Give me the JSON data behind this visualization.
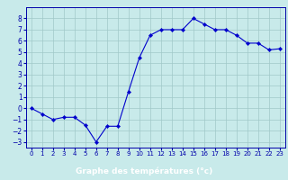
{
  "x": [
    0,
    1,
    2,
    3,
    4,
    5,
    6,
    7,
    8,
    9,
    10,
    11,
    12,
    13,
    14,
    15,
    16,
    17,
    18,
    19,
    20,
    21,
    22,
    23
  ],
  "y": [
    0,
    -0.5,
    -1,
    -0.8,
    -0.8,
    -1.5,
    -3,
    -1.6,
    -1.6,
    1.5,
    4.5,
    6.5,
    7,
    7,
    7,
    8,
    7.5,
    7,
    7,
    6.5,
    5.8,
    5.8,
    5.2,
    5.3
  ],
  "line_color": "#0000cc",
  "marker_color": "#0000cc",
  "bg_color": "#c8eaea",
  "grid_color": "#a0c8c8",
  "xlabel": "Graphe des températures (°c)",
  "ylim": [
    -3.5,
    9.0
  ],
  "xlim": [
    -0.5,
    23.5
  ],
  "yticks": [
    -3,
    -2,
    -1,
    0,
    1,
    2,
    3,
    4,
    5,
    6,
    7,
    8
  ],
  "xticks": [
    0,
    1,
    2,
    3,
    4,
    5,
    6,
    7,
    8,
    9,
    10,
    11,
    12,
    13,
    14,
    15,
    16,
    17,
    18,
    19,
    20,
    21,
    22,
    23
  ],
  "tick_label_color": "#0000aa",
  "title_bg_color": "#0000cc",
  "title_text_color": "#ffffff",
  "spine_color": "#0000aa"
}
